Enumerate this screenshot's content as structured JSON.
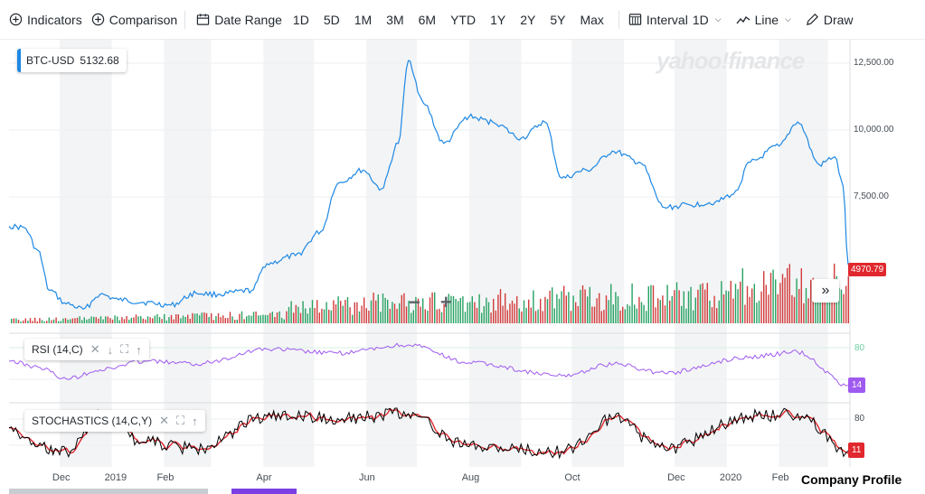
{
  "toolbar": {
    "indicators": "Indicators",
    "comparison": "Comparison",
    "date_range": "Date Range",
    "ranges": [
      "1D",
      "5D",
      "1M",
      "3M",
      "6M",
      "YTD",
      "1Y",
      "2Y",
      "5Y",
      "Max"
    ],
    "interval_label": "Interval",
    "interval_value": "1D",
    "chart_type": "Line",
    "draw": "Draw"
  },
  "watermark": "yahoo!finance",
  "ticker": {
    "symbol": "BTC-USD",
    "value": "5132.68"
  },
  "last_price_tag": "4970.79",
  "rsi_panel": {
    "label": "RSI (14,C)",
    "level": "80",
    "current": "14"
  },
  "stoch_panel": {
    "label": "STOCHASTICS (14,C,Y)",
    "level": "80",
    "current": "11"
  },
  "company_profile": "Company Profile",
  "colors": {
    "price_line": "#1e88e5",
    "rsi_line": "#9f5af0",
    "stoch_fast": "#000000",
    "stoch_slow": "#e0282e",
    "vol_up": "#27a263",
    "vol_down": "#d23b3b",
    "weekend_band": "#f3f4f5"
  },
  "chart_data": {
    "type": "line",
    "title": "",
    "xlabel": "",
    "ylabel": "",
    "x_ticks": [
      "Dec",
      "2019",
      "Feb",
      "Apr",
      "Jun",
      "Aug",
      "Oct",
      "Dec",
      "2020",
      "Feb"
    ],
    "y_ticks": [
      "12,500.00",
      "10,000.00",
      "7,500.00"
    ],
    "ylim": [
      3000,
      13000
    ],
    "grid": true,
    "series": [
      {
        "name": "BTC-USD",
        "x": [
          "2018-11-01",
          "2018-11-10",
          "2018-11-18",
          "2018-11-25",
          "2018-12-05",
          "2018-12-15",
          "2018-12-25",
          "2019-01-05",
          "2019-01-20",
          "2019-02-05",
          "2019-02-20",
          "2019-03-05",
          "2019-03-25",
          "2019-04-03",
          "2019-04-20",
          "2019-05-05",
          "2019-05-15",
          "2019-05-30",
          "2019-06-10",
          "2019-06-20",
          "2019-06-26",
          "2019-07-05",
          "2019-07-17",
          "2019-08-01",
          "2019-08-15",
          "2019-09-01",
          "2019-09-15",
          "2019-09-25",
          "2019-10-10",
          "2019-10-26",
          "2019-11-10",
          "2019-11-25",
          "2019-12-10",
          "2019-12-25",
          "2020-01-05",
          "2020-01-15",
          "2020-02-01",
          "2020-02-12",
          "2020-02-25",
          "2020-03-05",
          "2020-03-10",
          "2020-03-13"
        ],
        "y": [
          6400,
          6350,
          5500,
          4000,
          3500,
          3300,
          3850,
          3650,
          3550,
          3450,
          3900,
          3850,
          4000,
          5000,
          5300,
          6200,
          8000,
          8500,
          7800,
          9500,
          12600,
          11000,
          9500,
          10500,
          10300,
          9700,
          10300,
          8200,
          8500,
          9200,
          8800,
          7100,
          7200,
          7300,
          7600,
          8800,
          9400,
          10300,
          8700,
          9000,
          7900,
          4970.79
        ]
      },
      {
        "name": "RSI (14,C)",
        "x": [
          "2018-11-01",
          "2018-11-18",
          "2018-12-05",
          "2018-12-25",
          "2019-01-20",
          "2019-02-20",
          "2019-04-03",
          "2019-05-15",
          "2019-06-26",
          "2019-08-01",
          "2019-09-25",
          "2019-10-26",
          "2019-11-25",
          "2020-01-15",
          "2020-02-12",
          "2020-03-13"
        ],
        "y": [
          55,
          45,
          25,
          40,
          55,
          50,
          75,
          68,
          82,
          52,
          30,
          50,
          35,
          62,
          70,
          14
        ]
      },
      {
        "name": "STOCHASTICS (14,C,Y)",
        "x": [
          "2018-11-01",
          "2018-11-18",
          "2018-12-05",
          "2018-12-25",
          "2019-01-20",
          "2019-02-20",
          "2019-04-03",
          "2019-05-15",
          "2019-06-26",
          "2019-08-01",
          "2019-09-25",
          "2019-10-26",
          "2019-11-25",
          "2020-01-15",
          "2020-02-12",
          "2020-03-13"
        ],
        "y": [
          60,
          20,
          10,
          85,
          30,
          15,
          85,
          80,
          90,
          20,
          10,
          80,
          15,
          85,
          90,
          11
        ]
      }
    ]
  }
}
